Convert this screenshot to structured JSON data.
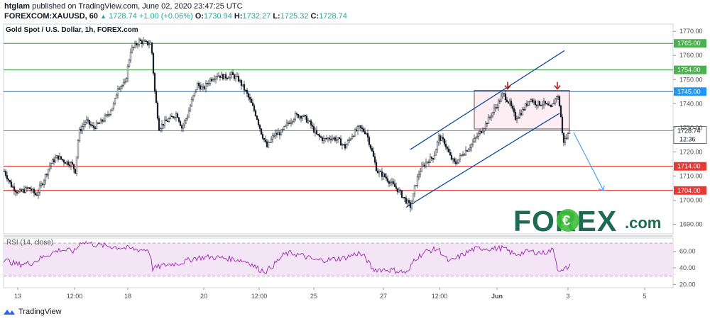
{
  "header": {
    "author": "htglam",
    "published_text": "published on TradingView.com, June 02, 2020 23:47:25 UTC",
    "symbol": "FOREXCOM:XAUUSD, 60",
    "last": "1728.74",
    "change": "+1.00 (+0.06%)",
    "o_label": "O:",
    "o": "1730.94",
    "h_label": "H:",
    "h": "1732.27",
    "l_label": "L:",
    "l": "1725.32",
    "c_label": "C:",
    "c": "1728.74"
  },
  "footer": {
    "brand": "TradingView"
  },
  "logo": {
    "text": "FOREX",
    "suffix": ".com",
    "color": "#1d6b52",
    "accent": "#3fbf3a"
  },
  "colors": {
    "up": "#ffffff",
    "down": "#131722",
    "green_level": "#4caf50",
    "blue_level": "#2196f3",
    "red_level": "#e53935",
    "channel": "#0d47a1",
    "arrow_red": "#b71c1c",
    "rsi_line": "#9c27b0",
    "rsi_fill": "#f3e5f5"
  },
  "chart_data": [
    {
      "type": "candlestick",
      "title": "Gold Spot / U.S. Dollar, 1h, FOREX.com",
      "ylim": [
        1686,
        1773
      ],
      "y_ticks": [
        "1770.00",
        "1760.00",
        "1750.00",
        "1740.00",
        "1730.00",
        "1720.00",
        "1710.00",
        "1700.00",
        "1690.00"
      ],
      "x_ticks": [
        "13",
        "12:00",
        "18",
        "20",
        "12:00",
        "25",
        "27",
        "12:00",
        "Jun",
        "3",
        "5"
      ],
      "price_tag": {
        "value": 1728.74,
        "label": "1728.74",
        "countdown": "12:36"
      },
      "levels": [
        {
          "value": 1765.0,
          "label": "1765.00",
          "color": "#4caf50"
        },
        {
          "value": 1754.0,
          "label": "1754.00",
          "color": "#4caf50"
        },
        {
          "value": 1745.0,
          "label": "1745.00",
          "color": "#2196f3"
        },
        {
          "value": 1714.0,
          "label": "1714.00",
          "color": "#e53935"
        },
        {
          "value": 1704.0,
          "label": "1704.00",
          "color": "#e53935"
        }
      ],
      "close_path": [
        [
          0,
          1712
        ],
        [
          10,
          1706
        ],
        [
          20,
          1703
        ],
        [
          35,
          1705
        ],
        [
          45,
          1702
        ],
        [
          55,
          1708
        ],
        [
          65,
          1715
        ],
        [
          75,
          1718
        ],
        [
          85,
          1716
        ],
        [
          95,
          1715
        ],
        [
          100,
          1712
        ],
        [
          105,
          1728
        ],
        [
          115,
          1733
        ],
        [
          125,
          1730
        ],
        [
          135,
          1732
        ],
        [
          145,
          1735
        ],
        [
          155,
          1740
        ],
        [
          160,
          1747
        ],
        [
          170,
          1748
        ],
        [
          178,
          1762
        ],
        [
          190,
          1766
        ],
        [
          200,
          1765
        ],
        [
          207,
          1765
        ],
        [
          212,
          1745
        ],
        [
          218,
          1730
        ],
        [
          225,
          1732
        ],
        [
          235,
          1734
        ],
        [
          243,
          1736
        ],
        [
          250,
          1730
        ],
        [
          258,
          1735
        ],
        [
          265,
          1742
        ],
        [
          272,
          1748
        ],
        [
          280,
          1746
        ],
        [
          290,
          1750
        ],
        [
          300,
          1752
        ],
        [
          310,
          1751
        ],
        [
          320,
          1752
        ],
        [
          330,
          1750
        ],
        [
          340,
          1745
        ],
        [
          348,
          1740
        ],
        [
          355,
          1735
        ],
        [
          362,
          1728
        ],
        [
          370,
          1722
        ],
        [
          380,
          1727
        ],
        [
          390,
          1728
        ],
        [
          400,
          1732
        ],
        [
          410,
          1735
        ],
        [
          420,
          1735
        ],
        [
          430,
          1732
        ],
        [
          440,
          1727
        ],
        [
          450,
          1725
        ],
        [
          460,
          1726
        ],
        [
          470,
          1725
        ],
        [
          480,
          1722
        ],
        [
          490,
          1727
        ],
        [
          500,
          1730
        ],
        [
          510,
          1728
        ],
        [
          518,
          1720
        ],
        [
          525,
          1712
        ],
        [
          535,
          1710
        ],
        [
          545,
          1707
        ],
        [
          555,
          1704
        ],
        [
          565,
          1700
        ],
        [
          573,
          1697
        ],
        [
          578,
          1705
        ],
        [
          585,
          1712
        ],
        [
          595,
          1716
        ],
        [
          605,
          1718
        ],
        [
          612,
          1726
        ],
        [
          620,
          1724
        ],
        [
          628,
          1718
        ],
        [
          635,
          1715
        ],
        [
          645,
          1719
        ],
        [
          655,
          1722
        ],
        [
          665,
          1726
        ],
        [
          675,
          1730
        ],
        [
          685,
          1735
        ],
        [
          695,
          1740
        ],
        [
          703,
          1744
        ],
        [
          712,
          1740
        ],
        [
          720,
          1734
        ],
        [
          730,
          1737
        ],
        [
          740,
          1742
        ],
        [
          750,
          1740
        ],
        [
          760,
          1740
        ],
        [
          770,
          1738
        ],
        [
          779,
          1744
        ],
        [
          783,
          1738
        ],
        [
          787,
          1724
        ],
        [
          792,
          1726
        ],
        [
          797,
          1728.74
        ]
      ],
      "annotations": {
        "channel_upper": [
          [
            573,
            1721
          ],
          [
            790,
            1762
          ]
        ],
        "channel_lower": [
          [
            567,
            1697
          ],
          [
            783,
            1736
          ]
        ],
        "rectangle": {
          "x0": 663,
          "x1": 797,
          "y0": 1729.5,
          "y1": 1745.5
        },
        "red_arrows_x": [
          710,
          780
        ],
        "forecast_arrow": [
          [
            803,
            1728
          ],
          [
            845,
            1704
          ]
        ]
      }
    },
    {
      "type": "line",
      "title": "RSI (14, close)",
      "ylim": [
        16,
        76
      ],
      "y_ticks": [
        "60.00",
        "40.00",
        "20.00"
      ],
      "band": [
        30,
        70
      ],
      "series_points": [
        [
          0,
          50
        ],
        [
          20,
          44
        ],
        [
          40,
          46
        ],
        [
          60,
          55
        ],
        [
          80,
          62
        ],
        [
          100,
          60
        ],
        [
          110,
          72
        ],
        [
          130,
          68
        ],
        [
          150,
          66
        ],
        [
          170,
          64
        ],
        [
          190,
          62
        ],
        [
          205,
          62
        ],
        [
          210,
          39
        ],
        [
          230,
          44
        ],
        [
          250,
          46
        ],
        [
          270,
          52
        ],
        [
          290,
          53
        ],
        [
          310,
          52
        ],
        [
          330,
          50
        ],
        [
          345,
          47
        ],
        [
          360,
          38
        ],
        [
          370,
          36
        ],
        [
          380,
          43
        ],
        [
          395,
          56
        ],
        [
          405,
          58
        ],
        [
          420,
          55
        ],
        [
          440,
          49
        ],
        [
          460,
          50
        ],
        [
          480,
          52
        ],
        [
          500,
          58
        ],
        [
          510,
          52
        ],
        [
          520,
          38
        ],
        [
          535,
          38
        ],
        [
          550,
          37
        ],
        [
          570,
          34
        ],
        [
          578,
          50
        ],
        [
          595,
          60
        ],
        [
          612,
          63
        ],
        [
          628,
          47
        ],
        [
          645,
          55
        ],
        [
          660,
          62
        ],
        [
          675,
          64
        ],
        [
          690,
          63
        ],
        [
          703,
          64
        ],
        [
          720,
          56
        ],
        [
          740,
          60
        ],
        [
          760,
          58
        ],
        [
          775,
          62
        ],
        [
          780,
          40
        ],
        [
          787,
          35
        ],
        [
          793,
          40
        ],
        [
          798,
          42
        ]
      ]
    }
  ]
}
